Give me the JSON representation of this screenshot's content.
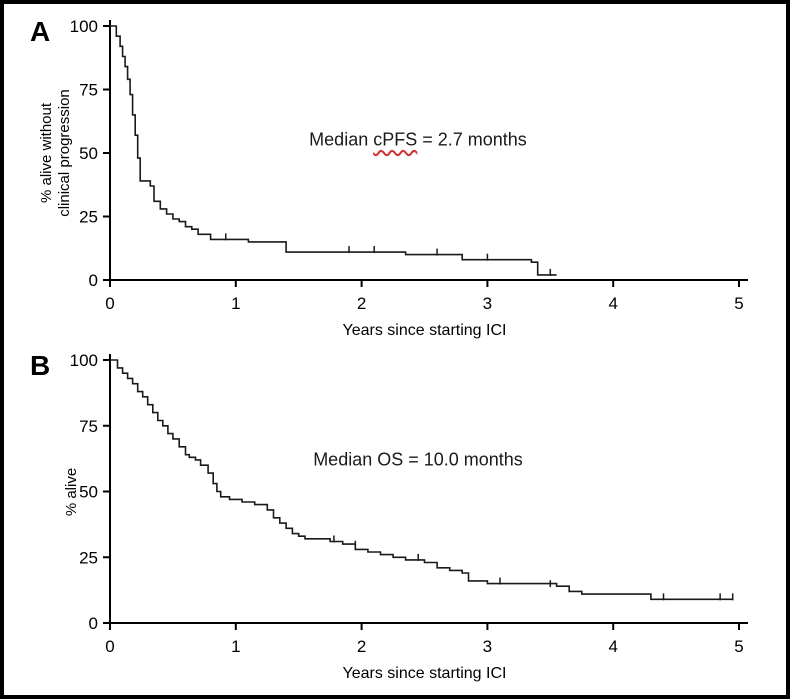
{
  "figure": {
    "background": "#ffffff",
    "border_color": "#000000",
    "curve_color": "#1a1a1a",
    "annotation_underline_color": "#d03030"
  },
  "chart_data": [
    {
      "type": "line",
      "subtype": "kaplan-meier-step",
      "panel_label": "A",
      "xlabel": "Years since starting ICI",
      "ylabel": "% alive without\nclinical progression",
      "xlim": [
        0,
        5
      ],
      "ylim": [
        0,
        100
      ],
      "xticks": [
        0,
        1,
        2,
        3,
        4,
        5
      ],
      "yticks": [
        0,
        25,
        50,
        75,
        100
      ],
      "grid": false,
      "legend": false,
      "annotation": {
        "prefix": "Median ",
        "underlined_word": "cPFS",
        "suffix": " = 2.7 months",
        "median_value_months": 2.7
      },
      "series": [
        {
          "name": "cPFS",
          "color": "#1a1a1a",
          "points": [
            [
              0,
              100
            ],
            [
              0.05,
              96
            ],
            [
              0.08,
              92
            ],
            [
              0.1,
              88
            ],
            [
              0.12,
              84
            ],
            [
              0.14,
              79
            ],
            [
              0.16,
              73
            ],
            [
              0.18,
              65
            ],
            [
              0.2,
              57
            ],
            [
              0.22,
              48
            ],
            [
              0.24,
              39
            ],
            [
              0.32,
              37
            ],
            [
              0.35,
              31
            ],
            [
              0.4,
              28
            ],
            [
              0.45,
              26
            ],
            [
              0.5,
              24
            ],
            [
              0.55,
              23
            ],
            [
              0.6,
              21
            ],
            [
              0.65,
              20
            ],
            [
              0.7,
              18
            ],
            [
              0.8,
              16
            ],
            [
              1.1,
              15
            ],
            [
              1.4,
              11
            ],
            [
              2.35,
              10
            ],
            [
              2.8,
              8
            ],
            [
              3.35,
              7
            ],
            [
              3.4,
              2
            ],
            [
              3.55,
              2
            ]
          ],
          "censor_marks": [
            [
              0.92,
              16
            ],
            [
              1.9,
              11
            ],
            [
              2.1,
              11
            ],
            [
              2.6,
              10
            ],
            [
              3.0,
              8
            ],
            [
              3.5,
              2
            ]
          ]
        }
      ]
    },
    {
      "type": "line",
      "subtype": "kaplan-meier-step",
      "panel_label": "B",
      "xlabel": "Years since starting ICI",
      "ylabel": "% alive",
      "xlim": [
        0,
        5
      ],
      "ylim": [
        0,
        100
      ],
      "xticks": [
        0,
        1,
        2,
        3,
        4,
        5
      ],
      "yticks": [
        0,
        25,
        50,
        75,
        100
      ],
      "grid": false,
      "legend": false,
      "annotation": {
        "prefix": "Median OS = 10.0 months",
        "underlined_word": "",
        "suffix": "",
        "median_value_months": 10.0
      },
      "series": [
        {
          "name": "OS",
          "color": "#1a1a1a",
          "points": [
            [
              0,
              100
            ],
            [
              0.06,
              97
            ],
            [
              0.1,
              95
            ],
            [
              0.14,
              93
            ],
            [
              0.18,
              91
            ],
            [
              0.22,
              88
            ],
            [
              0.26,
              86
            ],
            [
              0.3,
              83
            ],
            [
              0.34,
              80
            ],
            [
              0.38,
              77
            ],
            [
              0.42,
              75
            ],
            [
              0.46,
              72
            ],
            [
              0.5,
              70
            ],
            [
              0.55,
              67
            ],
            [
              0.6,
              64
            ],
            [
              0.63,
              63
            ],
            [
              0.68,
              62
            ],
            [
              0.72,
              60
            ],
            [
              0.78,
              57
            ],
            [
              0.82,
              53
            ],
            [
              0.85,
              50
            ],
            [
              0.88,
              48
            ],
            [
              0.95,
              47
            ],
            [
              1.05,
              46
            ],
            [
              1.15,
              45
            ],
            [
              1.25,
              43
            ],
            [
              1.3,
              40
            ],
            [
              1.35,
              38
            ],
            [
              1.4,
              36
            ],
            [
              1.45,
              34
            ],
            [
              1.5,
              33
            ],
            [
              1.55,
              32
            ],
            [
              1.75,
              31
            ],
            [
              1.85,
              30
            ],
            [
              1.95,
              28
            ],
            [
              2.05,
              27
            ],
            [
              2.15,
              26
            ],
            [
              2.25,
              25
            ],
            [
              2.35,
              24
            ],
            [
              2.5,
              23
            ],
            [
              2.6,
              21
            ],
            [
              2.7,
              20
            ],
            [
              2.8,
              19
            ],
            [
              2.85,
              16
            ],
            [
              3.0,
              15
            ],
            [
              3.55,
              14
            ],
            [
              3.65,
              12
            ],
            [
              3.75,
              11
            ],
            [
              4.3,
              9
            ],
            [
              4.95,
              9
            ]
          ],
          "censor_marks": [
            [
              1.78,
              31
            ],
            [
              1.95,
              29
            ],
            [
              2.45,
              24
            ],
            [
              3.1,
              15
            ],
            [
              3.5,
              14
            ],
            [
              4.4,
              9
            ],
            [
              4.85,
              9
            ],
            [
              4.95,
              9
            ]
          ]
        }
      ]
    }
  ]
}
